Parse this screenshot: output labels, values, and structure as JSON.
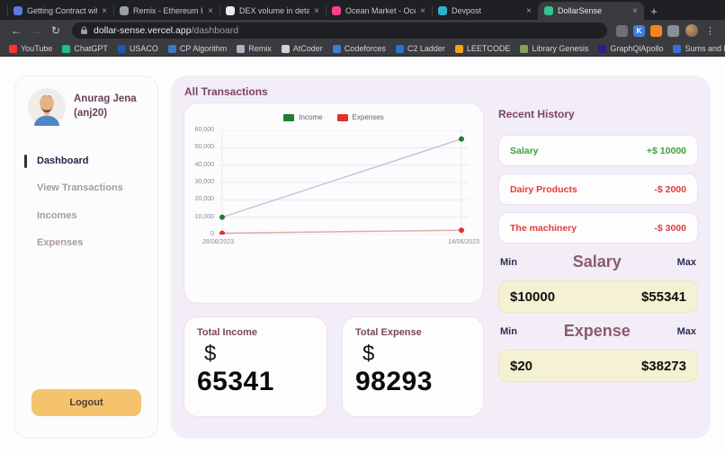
{
  "colors": {
    "green": "#3aa13a",
    "red": "#e23b3b",
    "heading": "#7c4560",
    "dark_navy": "#2e2e56",
    "logout_bg": "#f5c36c",
    "range_bg": "#f5f1d3",
    "main_panel_bg": "#f2edf6"
  },
  "browser": {
    "close_glyph": "×",
    "new_tab_glyph": "+",
    "nav": {
      "back": "←",
      "forward": "→",
      "reload": "↻",
      "menu": "⋮"
    },
    "address": {
      "host": "dollar-sense.vercel.app",
      "path": "/dashboard"
    },
    "tabs": [
      {
        "title": "Getting Contract with ethe...",
        "favicon_color": "#5b79e3",
        "active": false
      },
      {
        "title": "Remix - Ethereum IDE",
        "favicon_color": "#9aa0a6",
        "active": false
      },
      {
        "title": "DEX volume in details - O...",
        "favicon_color": "#e8eaed",
        "active": false
      },
      {
        "title": "Ocean Market - Ocean Mar...",
        "favicon_color": "#ff4092",
        "active": false
      },
      {
        "title": "Devpost",
        "favicon_color": "#29b6c8",
        "active": false
      },
      {
        "title": "DollarSense",
        "favicon_color": "#31c48d",
        "active": true
      }
    ],
    "extensions": [
      {
        "name": "screencast-extension",
        "glyph": "",
        "color": "#6d7075"
      },
      {
        "name": "kite-extension",
        "glyph": "K",
        "color": "#3f7de0"
      },
      {
        "name": "wallet-extension",
        "glyph": "",
        "color": "#f6851b"
      },
      {
        "name": "extensions-puzzle",
        "glyph": "",
        "color": "#8b8e93"
      }
    ],
    "bookmarks": [
      {
        "label": "YouTube",
        "color": "#ff3333"
      },
      {
        "label": "ChatGPT",
        "color": "#19c37d"
      },
      {
        "label": "USACO",
        "color": "#1e5aa8"
      },
      {
        "label": "CP Algorithm",
        "color": "#3979c0"
      },
      {
        "label": "Remix",
        "color": "#aeb4bc"
      },
      {
        "label": "AtCoder",
        "color": "#cfd2d6"
      },
      {
        "label": "Codeforces",
        "color": "#3b7dd8"
      },
      {
        "label": "C2 Ladder",
        "color": "#2f6fd0"
      },
      {
        "label": "LEETCODE",
        "color": "#f8a01c"
      },
      {
        "label": "Library Genesis",
        "color": "#8aa05a"
      },
      {
        "label": "GraphQlApollo",
        "color": "#311c87"
      },
      {
        "label": "Sums and Expect...",
        "color": "#3b6fd8"
      }
    ]
  },
  "sidebar": {
    "user_name": "Anurag Jena",
    "user_handle": "(anj20)",
    "menu": [
      {
        "label": "Dashboard",
        "active": true
      },
      {
        "label": "View Transactions",
        "active": false
      },
      {
        "label": "Incomes",
        "active": false
      },
      {
        "label": "Expenses",
        "active": false
      }
    ],
    "logout_label": "Logout"
  },
  "main": {
    "section_title": "All Transactions",
    "income_card": {
      "label": "Total Income",
      "currency": "$",
      "value": "65341"
    },
    "expense_card": {
      "label": "Total Expense",
      "currency": "$",
      "value": "98293"
    }
  },
  "history": {
    "title": "Recent History",
    "items": [
      {
        "label": "Salary",
        "amount": "+$ 10000",
        "type": "income"
      },
      {
        "label": "Dairy Products",
        "amount": "-$ 2000",
        "type": "expense"
      },
      {
        "label": "The machinery",
        "amount": "-$ 3000",
        "type": "expense"
      }
    ],
    "salary_range": {
      "min_label": "Min",
      "title": "Salary",
      "max_label": "Max",
      "min_value": "$10000",
      "max_value": "$55341"
    },
    "expense_range": {
      "min_label": "Min",
      "title": "Expense",
      "max_label": "Max",
      "min_value": "$20",
      "max_value": "$38273"
    }
  },
  "chart_data": {
    "type": "line",
    "x_labels": [
      "28/06/2023",
      "14/06/2023"
    ],
    "ylim": [
      0,
      60000
    ],
    "yticks": [
      0,
      10000,
      20000,
      30000,
      40000,
      50000,
      60000
    ],
    "ytick_labels_desc": [
      "60,000",
      "50,000",
      "40,000",
      "30,000",
      "20,000",
      "10,000",
      "0"
    ],
    "grid": true,
    "legend_position": "top",
    "series": [
      {
        "name": "Income",
        "values": [
          10000,
          55000
        ],
        "point_color": "#1e7e34",
        "line_color": "#c7c7cf"
      },
      {
        "name": "Expenses",
        "values": [
          800,
          2500
        ],
        "point_color": "#e03131",
        "line_color": "#e6a9a6"
      }
    ]
  }
}
